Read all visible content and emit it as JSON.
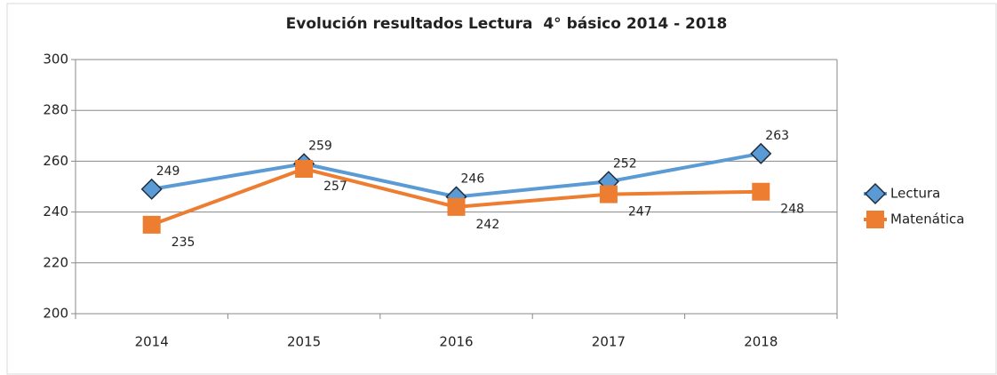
{
  "chart_data": {
    "type": "line",
    "title": "Evolución resultados Lectura  4° básico 2014 - 2018",
    "categories": [
      "2014",
      "2015",
      "2016",
      "2017",
      "2018"
    ],
    "series": [
      {
        "name": "Lectura",
        "color": "#5b9bd5",
        "marker": "diamond",
        "values": [
          249,
          259,
          246,
          252,
          263
        ]
      },
      {
        "name": "Matenática",
        "color": "#ed7d31",
        "marker": "square",
        "values": [
          235,
          257,
          242,
          247,
          248
        ]
      }
    ],
    "ylim": [
      200,
      300
    ],
    "yticks": [
      200,
      220,
      240,
      260,
      280,
      300
    ],
    "grid": true,
    "legend": "right"
  }
}
